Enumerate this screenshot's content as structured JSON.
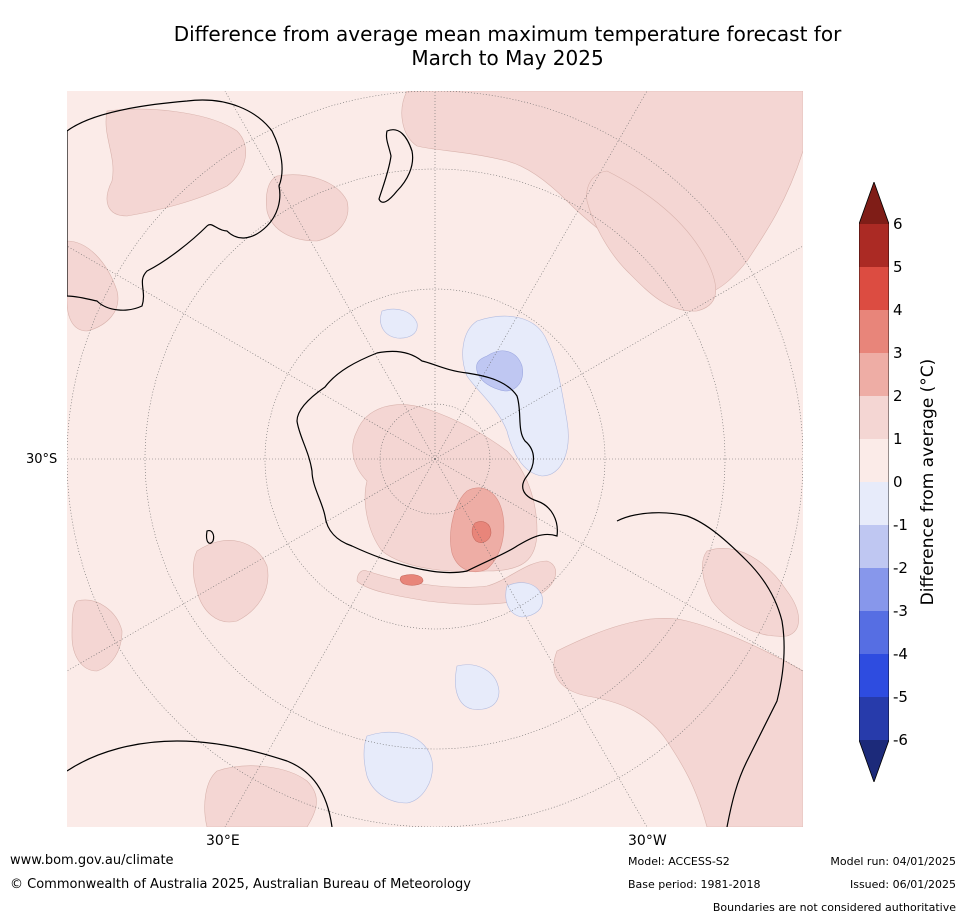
{
  "title": {
    "line1": "Difference from average mean maximum temperature forecast for",
    "line2": "March to May 2025"
  },
  "map": {
    "projection": "south-polar-stereographic",
    "lat_label": "30°S",
    "lon_labels": {
      "east": "30°E",
      "west": "30°W"
    }
  },
  "colorbar": {
    "label": "Difference from average ($^\\circ$C)",
    "label_text": "Difference from average (°C)",
    "ticks": [
      "6",
      "5",
      "4",
      "3",
      "2",
      "1",
      "0",
      "-1",
      "-2",
      "-3",
      "-4",
      "-5",
      "-6"
    ],
    "bins": [
      {
        "range": ">6",
        "color": "#7f1d17"
      },
      {
        "range": "5 to 6",
        "color": "#ab2a24"
      },
      {
        "range": "4 to 5",
        "color": "#dc4c41"
      },
      {
        "range": "3 to 4",
        "color": "#e8857a"
      },
      {
        "range": "2 to 3",
        "color": "#eeada5"
      },
      {
        "range": "1 to 2",
        "color": "#f4d6d3"
      },
      {
        "range": "0 to 1",
        "color": "#fbebe8"
      },
      {
        "range": "-1 to 0",
        "color": "#e7ebfa"
      },
      {
        "range": "-2 to -1",
        "color": "#bfc7f2"
      },
      {
        "range": "-3 to -2",
        "color": "#8797eb"
      },
      {
        "range": "-4 to -3",
        "color": "#566ee3"
      },
      {
        "range": "-5 to -4",
        "color": "#2e4ce0"
      },
      {
        "range": "-6 to -5",
        "color": "#273bab"
      },
      {
        "range": "<-6",
        "color": "#1c2a7a"
      }
    ]
  },
  "footer": {
    "website": "www.bom.gov.au/climate",
    "copyright": "© Commonwealth of Australia 2025, Australian Bureau of Meteorology",
    "model": "Model: ACCESS-S2",
    "base_period": "Base period: 1981-2018",
    "model_run": "Model run: 04/01/2025",
    "issued": "Issued: 06/01/2025",
    "disclaimer": "Boundaries are not considered authoritative"
  }
}
